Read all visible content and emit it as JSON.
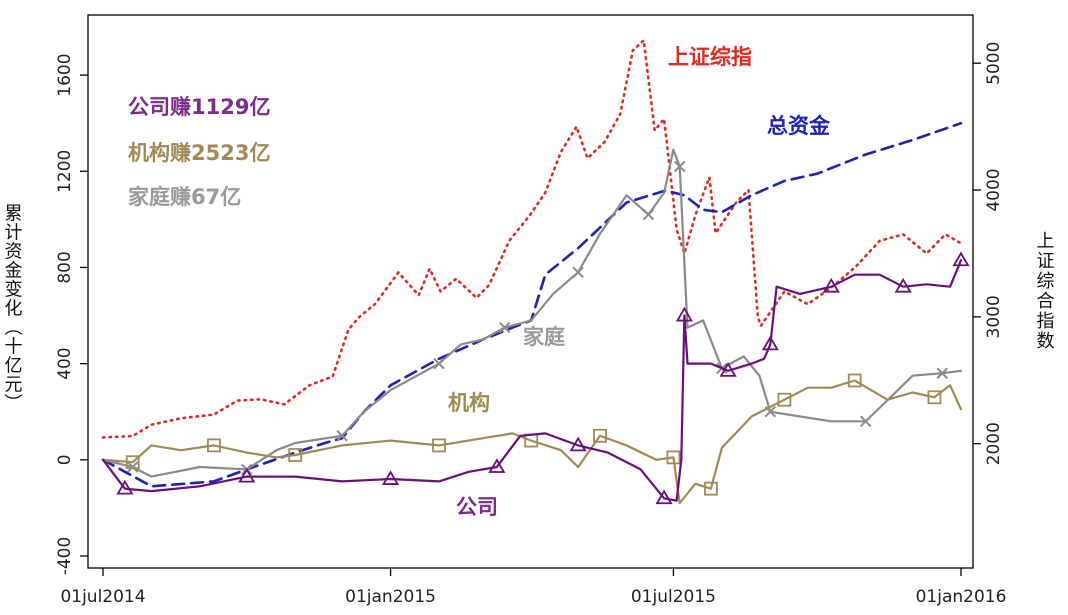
{
  "chart_data": {
    "type": "line",
    "x_ticks": [
      "01jul2014",
      "01jan2015",
      "01jul2015",
      "01jan2016"
    ],
    "x_range": [
      "2014-07-01",
      "2016-01-01"
    ],
    "ylabel_left": "累计资金变化（十亿元）",
    "ylabel_right": "上证综合指数",
    "ylim_left": [
      -450,
      1850
    ],
    "ylim_right": [
      1020,
      5380
    ],
    "yticks_left": [
      -400,
      0,
      400,
      800,
      1200,
      1600
    ],
    "yticks_right": [
      2000,
      3000,
      4000,
      5000
    ],
    "grid": false,
    "summary_labels": [
      {
        "text": "公司赚1129亿",
        "color": "#7b2d8e"
      },
      {
        "text": "机构赚2523亿",
        "color": "#a08a55"
      },
      {
        "text": "家庭赚67亿",
        "color": "#9a9a9a"
      }
    ],
    "series": [
      {
        "name": "上证综指",
        "axis": "right",
        "color": "#e8281f",
        "style": "dotted",
        "points": [
          [
            "2014-07-01",
            2050
          ],
          [
            "2014-07-20",
            2060
          ],
          [
            "2014-08-01",
            2150
          ],
          [
            "2014-08-20",
            2200
          ],
          [
            "2014-09-10",
            2230
          ],
          [
            "2014-09-25",
            2340
          ],
          [
            "2014-10-10",
            2350
          ],
          [
            "2014-10-25",
            2310
          ],
          [
            "2014-11-10",
            2460
          ],
          [
            "2014-11-25",
            2530
          ],
          [
            "2014-12-05",
            2900
          ],
          [
            "2014-12-12",
            3000
          ],
          [
            "2014-12-22",
            3100
          ],
          [
            "2015-01-06",
            3350
          ],
          [
            "2015-01-19",
            3170
          ],
          [
            "2015-01-26",
            3380
          ],
          [
            "2015-02-02",
            3200
          ],
          [
            "2015-02-12",
            3300
          ],
          [
            "2015-02-25",
            3150
          ],
          [
            "2015-03-05",
            3250
          ],
          [
            "2015-03-18",
            3600
          ],
          [
            "2015-03-31",
            3800
          ],
          [
            "2015-04-10",
            3980
          ],
          [
            "2015-04-20",
            4300
          ],
          [
            "2015-04-30",
            4500
          ],
          [
            "2015-05-07",
            4250
          ],
          [
            "2015-05-18",
            4380
          ],
          [
            "2015-05-28",
            4600
          ],
          [
            "2015-06-05",
            5100
          ],
          [
            "2015-06-12",
            5180
          ],
          [
            "2015-06-19",
            4470
          ],
          [
            "2015-06-25",
            4560
          ],
          [
            "2015-07-03",
            3690
          ],
          [
            "2015-07-08",
            3500
          ],
          [
            "2015-07-15",
            3800
          ],
          [
            "2015-07-24",
            4100
          ],
          [
            "2015-07-28",
            3660
          ],
          [
            "2015-08-10",
            3900
          ],
          [
            "2015-08-18",
            4000
          ],
          [
            "2015-08-24",
            3000
          ],
          [
            "2015-08-26",
            2930
          ],
          [
            "2015-09-10",
            3200
          ],
          [
            "2015-09-25",
            3100
          ],
          [
            "2015-10-12",
            3250
          ],
          [
            "2015-10-26",
            3400
          ],
          [
            "2015-11-10",
            3600
          ],
          [
            "2015-11-25",
            3650
          ],
          [
            "2015-12-10",
            3500
          ],
          [
            "2015-12-22",
            3650
          ],
          [
            "2016-01-01",
            3580
          ]
        ]
      },
      {
        "name": "总资金",
        "axis": "left",
        "color": "#1e22b8",
        "style": "dashed",
        "points": [
          [
            "2014-07-01",
            0
          ],
          [
            "2014-08-01",
            -110
          ],
          [
            "2014-09-10",
            -90
          ],
          [
            "2014-10-01",
            -40
          ],
          [
            "2014-11-01",
            30
          ],
          [
            "2014-11-20",
            70
          ],
          [
            "2014-12-01",
            90
          ],
          [
            "2014-12-15",
            200
          ],
          [
            "2015-01-01",
            310
          ],
          [
            "2015-02-01",
            420
          ],
          [
            "2015-03-01",
            500
          ],
          [
            "2015-03-20",
            550
          ],
          [
            "2015-04-01",
            580
          ],
          [
            "2015-04-10",
            770
          ],
          [
            "2015-05-01",
            880
          ],
          [
            "2015-06-01",
            1070
          ],
          [
            "2015-06-26",
            1120
          ],
          [
            "2015-07-08",
            1100
          ],
          [
            "2015-07-20",
            1040
          ],
          [
            "2015-08-01",
            1030
          ],
          [
            "2015-08-20",
            1100
          ],
          [
            "2015-09-10",
            1160
          ],
          [
            "2015-10-01",
            1190
          ],
          [
            "2015-11-01",
            1270
          ],
          [
            "2015-12-01",
            1330
          ],
          [
            "2016-01-01",
            1400
          ]
        ]
      },
      {
        "name": "家庭",
        "axis": "left",
        "color": "#8a8a8a",
        "style": "solid",
        "points": [
          [
            "2014-07-01",
            0
          ],
          [
            "2014-07-20",
            -30
          ],
          [
            "2014-08-01",
            -70
          ],
          [
            "2014-09-01",
            -30
          ],
          [
            "2014-10-01",
            -40
          ],
          [
            "2014-10-20",
            40
          ],
          [
            "2014-11-01",
            70
          ],
          [
            "2014-12-01",
            100
          ],
          [
            "2014-12-15",
            200
          ],
          [
            "2015-01-01",
            290
          ],
          [
            "2015-02-01",
            400
          ],
          [
            "2015-02-15",
            480
          ],
          [
            "2015-03-01",
            500
          ],
          [
            "2015-03-15",
            550
          ],
          [
            "2015-04-01",
            580
          ],
          [
            "2015-04-15",
            690
          ],
          [
            "2015-05-01",
            780
          ],
          [
            "2015-05-15",
            940
          ],
          [
            "2015-06-01",
            1100
          ],
          [
            "2015-06-15",
            1020
          ],
          [
            "2015-06-25",
            1110
          ],
          [
            "2015-07-01",
            1290
          ],
          [
            "2015-07-05",
            1220
          ],
          [
            "2015-07-10",
            550
          ],
          [
            "2015-07-20",
            580
          ],
          [
            "2015-08-01",
            380
          ],
          [
            "2015-08-15",
            430
          ],
          [
            "2015-08-25",
            350
          ],
          [
            "2015-09-01",
            200
          ],
          [
            "2015-09-20",
            180
          ],
          [
            "2015-10-10",
            160
          ],
          [
            "2015-11-01",
            160
          ],
          [
            "2015-11-20",
            280
          ],
          [
            "2015-12-01",
            350
          ],
          [
            "2015-12-20",
            360
          ],
          [
            "2016-01-01",
            370
          ]
        ]
      },
      {
        "name": "机构",
        "axis": "left",
        "color": "#a08a55",
        "style": "solid",
        "points": [
          [
            "2014-07-01",
            0
          ],
          [
            "2014-07-20",
            -10
          ],
          [
            "2014-08-01",
            60
          ],
          [
            "2014-08-20",
            40
          ],
          [
            "2014-09-10",
            60
          ],
          [
            "2014-10-01",
            30
          ],
          [
            "2014-10-20",
            10
          ],
          [
            "2014-11-01",
            20
          ],
          [
            "2014-12-01",
            60
          ],
          [
            "2015-01-01",
            80
          ],
          [
            "2015-02-01",
            60
          ],
          [
            "2015-03-01",
            90
          ],
          [
            "2015-03-20",
            110
          ],
          [
            "2015-04-01",
            80
          ],
          [
            "2015-04-20",
            40
          ],
          [
            "2015-05-01",
            -30
          ],
          [
            "2015-05-15",
            100
          ],
          [
            "2015-06-01",
            60
          ],
          [
            "2015-06-20",
            0
          ],
          [
            "2015-07-01",
            10
          ],
          [
            "2015-07-05",
            -180
          ],
          [
            "2015-07-15",
            -100
          ],
          [
            "2015-07-25",
            -120
          ],
          [
            "2015-08-01",
            50
          ],
          [
            "2015-08-20",
            180
          ],
          [
            "2015-09-10",
            250
          ],
          [
            "2015-09-25",
            300
          ],
          [
            "2015-10-10",
            300
          ],
          [
            "2015-10-25",
            330
          ],
          [
            "2015-11-15",
            250
          ],
          [
            "2015-12-01",
            280
          ],
          [
            "2015-12-15",
            260
          ],
          [
            "2015-12-25",
            310
          ],
          [
            "2016-01-01",
            210
          ]
        ]
      },
      {
        "name": "公司",
        "axis": "left",
        "color": "#6a0e7e",
        "style": "solid",
        "points": [
          [
            "2014-07-01",
            0
          ],
          [
            "2014-07-15",
            -120
          ],
          [
            "2014-08-01",
            -130
          ],
          [
            "2014-09-01",
            -110
          ],
          [
            "2014-10-01",
            -70
          ],
          [
            "2014-11-01",
            -70
          ],
          [
            "2014-12-01",
            -90
          ],
          [
            "2015-01-01",
            -80
          ],
          [
            "2015-02-01",
            -90
          ],
          [
            "2015-02-20",
            -50
          ],
          [
            "2015-03-10",
            -30
          ],
          [
            "2015-03-25",
            100
          ],
          [
            "2015-04-10",
            110
          ],
          [
            "2015-05-01",
            60
          ],
          [
            "2015-05-20",
            30
          ],
          [
            "2015-06-10",
            -40
          ],
          [
            "2015-06-25",
            -160
          ],
          [
            "2015-07-03",
            -170
          ],
          [
            "2015-07-06",
            0
          ],
          [
            "2015-07-08",
            600
          ],
          [
            "2015-07-10",
            400
          ],
          [
            "2015-07-25",
            400
          ],
          [
            "2015-08-05",
            370
          ],
          [
            "2015-08-20",
            400
          ],
          [
            "2015-08-28",
            420
          ],
          [
            "2015-09-01",
            480
          ],
          [
            "2015-09-05",
            720
          ],
          [
            "2015-09-20",
            690
          ],
          [
            "2015-10-10",
            720
          ],
          [
            "2015-10-25",
            770
          ],
          [
            "2015-11-10",
            770
          ],
          [
            "2015-11-25",
            720
          ],
          [
            "2015-12-10",
            730
          ],
          [
            "2015-12-25",
            720
          ],
          [
            "2016-01-01",
            830
          ]
        ]
      }
    ]
  }
}
